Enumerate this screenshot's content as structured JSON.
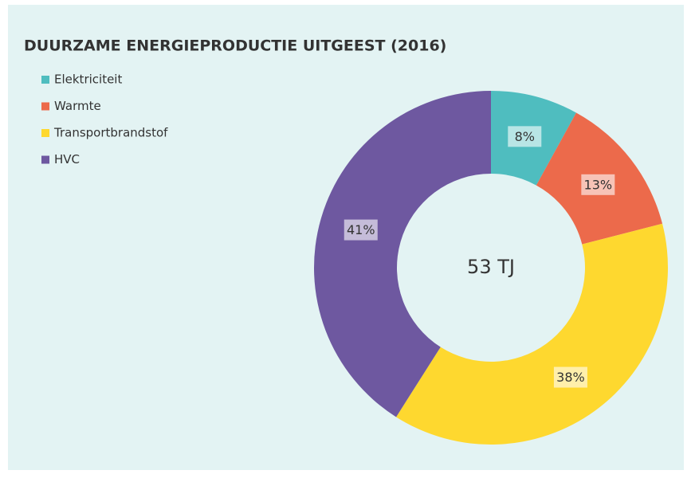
{
  "chart_data": {
    "type": "donut",
    "title": "DUURZAME ENERGIEPRODUCTIE UITGEEST (2016)",
    "categories": [
      "Elektriciteit",
      "Warmte",
      "Transportbrandstof",
      "HVC"
    ],
    "values": [
      8,
      13,
      38,
      41
    ],
    "value_labels": [
      "8%",
      "13%",
      "38%",
      "41%"
    ],
    "colors": [
      "#4fbdbf",
      "#ec6a4b",
      "#fed82f",
      "#6e58a0"
    ],
    "center_label": "53 TJ",
    "legend": "top-left"
  }
}
